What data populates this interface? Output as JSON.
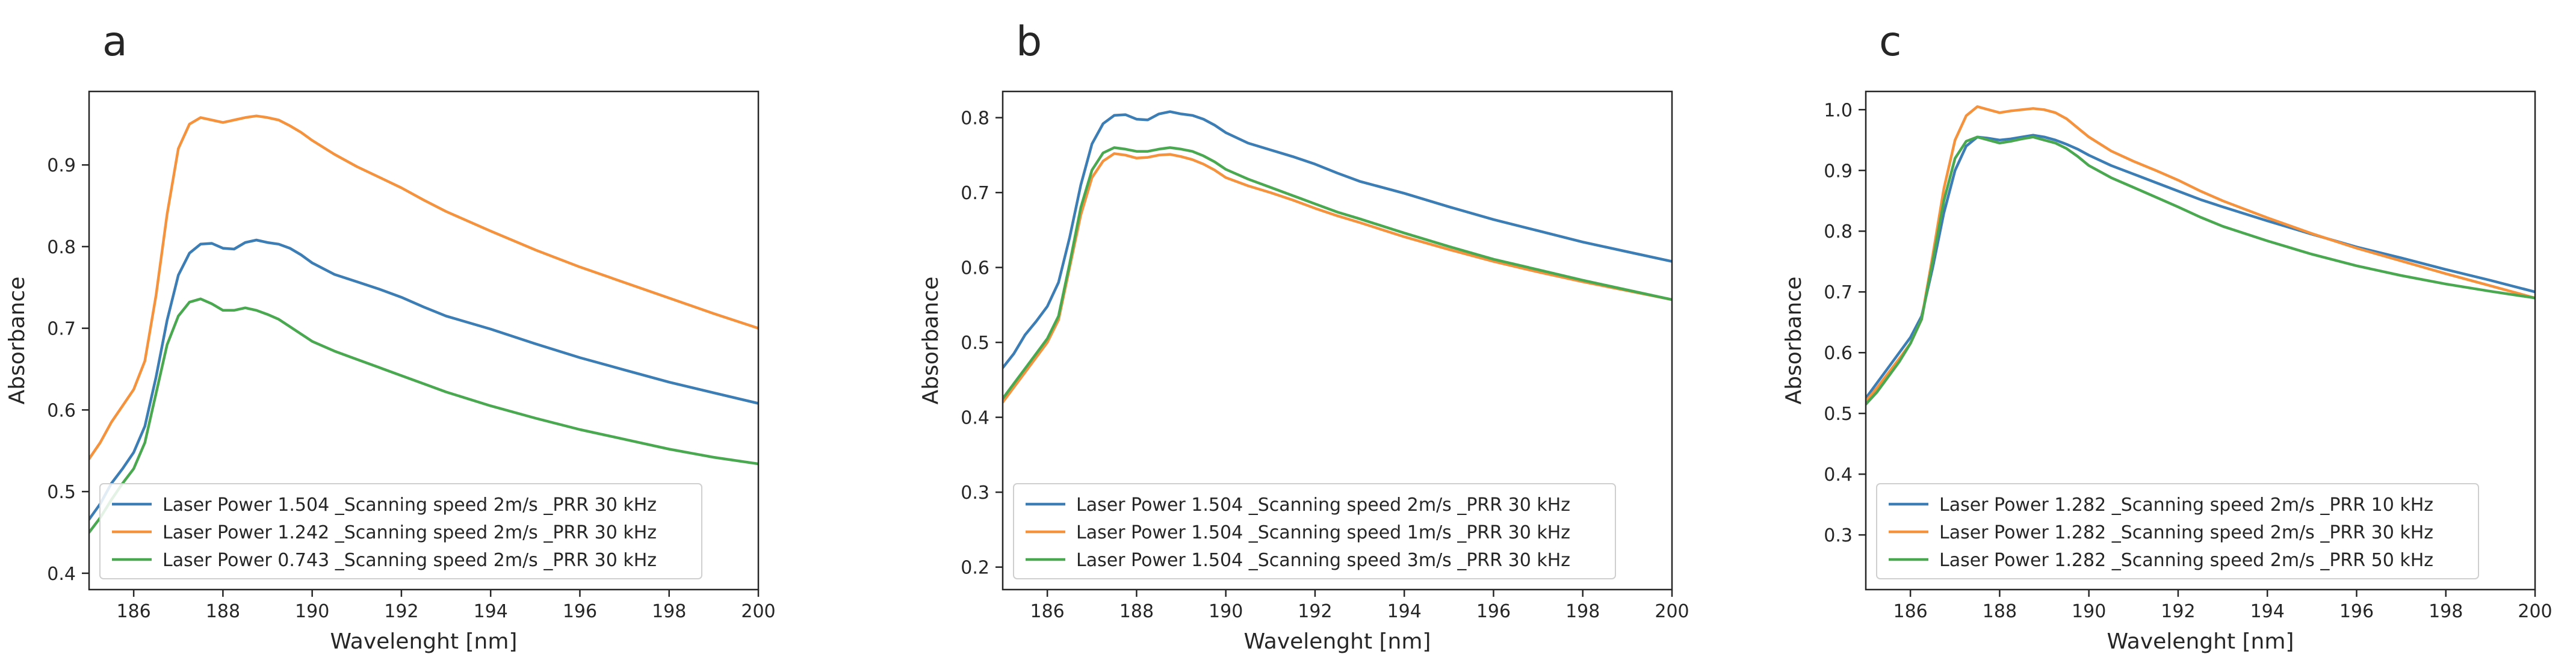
{
  "colors": {
    "blue": "#3b7db4",
    "orange": "#f5923e",
    "green": "#4aa851",
    "axis": "#262626",
    "legend_border": "#cfcfcf"
  },
  "chart_data": [
    {
      "panel": "a",
      "type": "line",
      "xlabel": "Wavelenght [nm]",
      "ylabel": "Absorbance",
      "xlim": [
        185,
        200
      ],
      "ylim": [
        0.38,
        0.99
      ],
      "xticks": [
        186,
        188,
        190,
        192,
        194,
        196,
        198,
        200
      ],
      "xtick_labels": [
        "186",
        "188",
        "190",
        "192",
        "194",
        "196",
        "198",
        "200"
      ],
      "yticks": [
        0.4,
        0.5,
        0.6,
        0.7,
        0.8,
        0.9
      ],
      "ytick_labels": [
        "0.4",
        "0.5",
        "0.6",
        "0.7",
        "0.8",
        "0.9"
      ],
      "legend_position": "lower-left",
      "x": [
        185,
        185.25,
        185.5,
        185.75,
        186,
        186.25,
        186.5,
        186.75,
        187,
        187.25,
        187.5,
        187.75,
        188,
        188.25,
        188.5,
        188.75,
        189,
        189.25,
        189.5,
        189.75,
        190,
        190.5,
        191,
        191.5,
        192,
        192.5,
        193,
        194,
        195,
        196,
        197,
        198,
        199,
        200
      ],
      "series": [
        {
          "name": "Laser Power 1.504 _Scanning speed 2m/s _PRR 30 kHz",
          "color": "blue",
          "values": [
            0.466,
            0.485,
            0.51,
            0.528,
            0.548,
            0.58,
            0.64,
            0.71,
            0.765,
            0.792,
            0.803,
            0.804,
            0.798,
            0.797,
            0.805,
            0.808,
            0.805,
            0.803,
            0.798,
            0.79,
            0.78,
            0.766,
            0.757,
            0.748,
            0.738,
            0.726,
            0.715,
            0.699,
            0.681,
            0.664,
            0.649,
            0.634,
            0.621,
            0.608
          ]
        },
        {
          "name": "Laser Power 1.242 _Scanning speed 2m/s _PRR 30 kHz",
          "color": "orange",
          "values": [
            0.54,
            0.56,
            0.585,
            0.605,
            0.625,
            0.66,
            0.74,
            0.84,
            0.92,
            0.95,
            0.958,
            0.955,
            0.952,
            0.955,
            0.958,
            0.96,
            0.958,
            0.955,
            0.948,
            0.94,
            0.93,
            0.913,
            0.898,
            0.885,
            0.872,
            0.857,
            0.843,
            0.819,
            0.796,
            0.775,
            0.756,
            0.737,
            0.718,
            0.7
          ]
        },
        {
          "name": "Laser Power 0.743 _Scanning speed 2m/s _PRR 30 kHz",
          "color": "green",
          "values": [
            0.45,
            0.468,
            0.49,
            0.51,
            0.528,
            0.56,
            0.62,
            0.68,
            0.715,
            0.732,
            0.736,
            0.73,
            0.722,
            0.722,
            0.725,
            0.722,
            0.717,
            0.711,
            0.702,
            0.693,
            0.684,
            0.672,
            0.662,
            0.652,
            0.642,
            0.632,
            0.622,
            0.605,
            0.59,
            0.576,
            0.564,
            0.552,
            0.542,
            0.534
          ]
        }
      ]
    },
    {
      "panel": "b",
      "type": "line",
      "xlabel": "Wavelenght [nm]",
      "ylabel": "Absorbance",
      "xlim": [
        185,
        200
      ],
      "ylim": [
        0.17,
        0.835
      ],
      "xticks": [
        186,
        188,
        190,
        192,
        194,
        196,
        198,
        200
      ],
      "xtick_labels": [
        "186",
        "188",
        "190",
        "192",
        "194",
        "196",
        "198",
        "200"
      ],
      "yticks": [
        0.2,
        0.3,
        0.4,
        0.5,
        0.6,
        0.7,
        0.8
      ],
      "ytick_labels": [
        "0.2",
        "0.3",
        "0.4",
        "0.5",
        "0.6",
        "0.7",
        "0.8"
      ],
      "legend_position": "lower-left",
      "x": [
        185,
        185.25,
        185.5,
        185.75,
        186,
        186.25,
        186.5,
        186.75,
        187,
        187.25,
        187.5,
        187.75,
        188,
        188.25,
        188.5,
        188.75,
        189,
        189.25,
        189.5,
        189.75,
        190,
        190.5,
        191,
        191.5,
        192,
        192.5,
        193,
        194,
        195,
        196,
        197,
        198,
        199,
        200
      ],
      "series": [
        {
          "name": "Laser Power 1.504 _Scanning speed 2m/s _PRR 30 kHz",
          "color": "blue",
          "values": [
            0.466,
            0.485,
            0.51,
            0.528,
            0.548,
            0.58,
            0.64,
            0.71,
            0.765,
            0.792,
            0.803,
            0.804,
            0.798,
            0.797,
            0.805,
            0.808,
            0.805,
            0.803,
            0.798,
            0.79,
            0.78,
            0.766,
            0.757,
            0.748,
            0.738,
            0.726,
            0.715,
            0.699,
            0.681,
            0.664,
            0.649,
            0.634,
            0.621,
            0.608
          ]
        },
        {
          "name": "Laser Power 1.504 _Scanning speed 1m/s _PRR 30 kHz",
          "color": "orange",
          "values": [
            0.42,
            0.44,
            0.46,
            0.48,
            0.5,
            0.53,
            0.6,
            0.67,
            0.72,
            0.742,
            0.752,
            0.75,
            0.746,
            0.747,
            0.75,
            0.751,
            0.748,
            0.744,
            0.738,
            0.73,
            0.72,
            0.709,
            0.7,
            0.69,
            0.679,
            0.669,
            0.66,
            0.641,
            0.624,
            0.608,
            0.594,
            0.581,
            0.569,
            0.557
          ]
        },
        {
          "name": "Laser Power 1.504 _Scanning speed 3m/s _PRR 30 kHz",
          "color": "green",
          "values": [
            0.425,
            0.445,
            0.465,
            0.485,
            0.505,
            0.535,
            0.605,
            0.68,
            0.73,
            0.753,
            0.76,
            0.758,
            0.755,
            0.755,
            0.758,
            0.76,
            0.758,
            0.755,
            0.749,
            0.741,
            0.731,
            0.718,
            0.707,
            0.696,
            0.685,
            0.674,
            0.665,
            0.646,
            0.628,
            0.611,
            0.597,
            0.583,
            0.57,
            0.557
          ]
        }
      ]
    },
    {
      "panel": "c",
      "type": "line",
      "xlabel": "Wavelenght [nm]",
      "ylabel": "Absorbance",
      "xlim": [
        185,
        200
      ],
      "ylim": [
        0.21,
        1.03
      ],
      "xticks": [
        186,
        188,
        190,
        192,
        194,
        196,
        198,
        200
      ],
      "xtick_labels": [
        "186",
        "188",
        "190",
        "192",
        "194",
        "196",
        "198",
        "200"
      ],
      "yticks": [
        0.3,
        0.4,
        0.5,
        0.6,
        0.7,
        0.8,
        0.9,
        1.0
      ],
      "ytick_labels": [
        "0.3",
        "0.4",
        "0.5",
        "0.6",
        "0.7",
        "0.8",
        "0.9",
        "1.0"
      ],
      "legend_position": "lower-left",
      "x": [
        185,
        185.25,
        185.5,
        185.75,
        186,
        186.25,
        186.5,
        186.75,
        187,
        187.25,
        187.5,
        187.75,
        188,
        188.25,
        188.5,
        188.75,
        189,
        189.25,
        189.5,
        189.75,
        190,
        190.5,
        191,
        191.5,
        192,
        192.5,
        193,
        194,
        195,
        196,
        197,
        198,
        199,
        200
      ],
      "series": [
        {
          "name": "Laser Power 1.282 _Scanning speed 2m/s _PRR 10 kHz",
          "color": "blue",
          "values": [
            0.525,
            0.55,
            0.575,
            0.6,
            0.625,
            0.66,
            0.74,
            0.83,
            0.9,
            0.94,
            0.955,
            0.953,
            0.95,
            0.952,
            0.955,
            0.958,
            0.955,
            0.95,
            0.943,
            0.935,
            0.925,
            0.908,
            0.894,
            0.88,
            0.866,
            0.852,
            0.84,
            0.817,
            0.795,
            0.774,
            0.756,
            0.737,
            0.719,
            0.7
          ]
        },
        {
          "name": "Laser Power 1.282 _Scanning speed 2m/s _PRR 30 kHz",
          "color": "orange",
          "values": [
            0.52,
            0.542,
            0.566,
            0.59,
            0.615,
            0.655,
            0.76,
            0.87,
            0.95,
            0.99,
            1.005,
            1.0,
            0.995,
            0.998,
            1.0,
            1.002,
            1.0,
            0.995,
            0.985,
            0.97,
            0.955,
            0.932,
            0.915,
            0.9,
            0.884,
            0.866,
            0.85,
            0.822,
            0.796,
            0.772,
            0.751,
            0.73,
            0.71,
            0.69
          ]
        },
        {
          "name": "Laser Power 1.282 _Scanning speed 2m/s _PRR 50 kHz",
          "color": "green",
          "values": [
            0.515,
            0.535,
            0.56,
            0.585,
            0.615,
            0.655,
            0.75,
            0.85,
            0.92,
            0.948,
            0.955,
            0.95,
            0.945,
            0.948,
            0.952,
            0.955,
            0.95,
            0.945,
            0.936,
            0.923,
            0.908,
            0.888,
            0.872,
            0.856,
            0.84,
            0.823,
            0.808,
            0.784,
            0.762,
            0.743,
            0.727,
            0.713,
            0.701,
            0.69
          ]
        }
      ]
    }
  ]
}
